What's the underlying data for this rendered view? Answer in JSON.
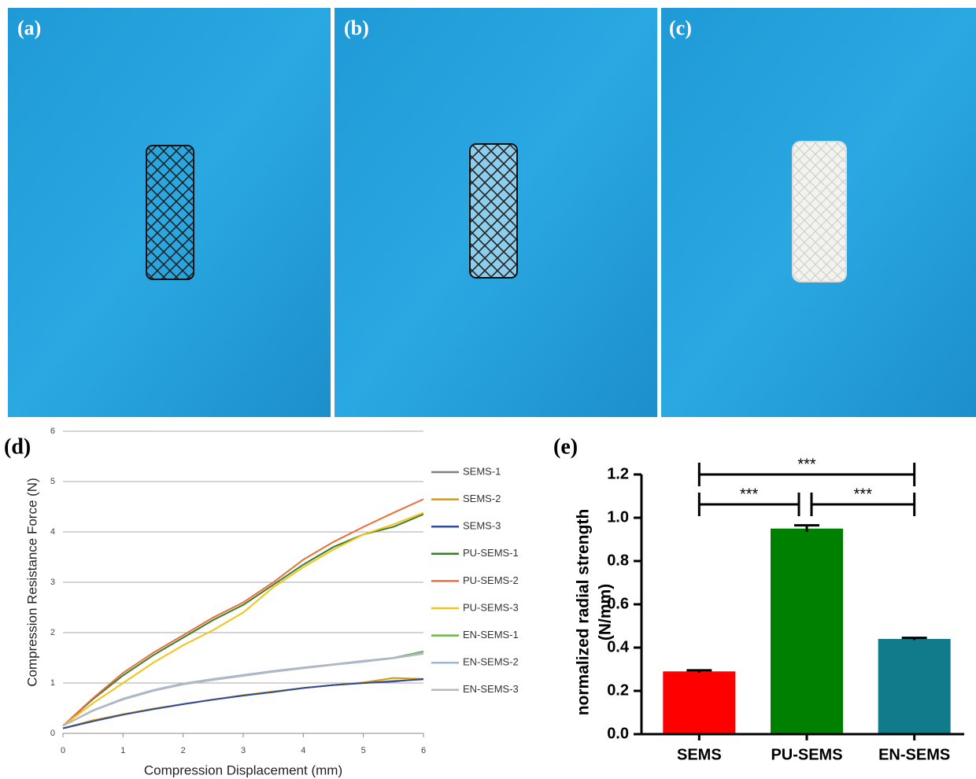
{
  "photo_labels": [
    "(a)",
    "(b)",
    "(c)"
  ],
  "chart_data": [
    {
      "type": "line",
      "label": "(d)",
      "xlabel": "Compression Displacement (mm)",
      "ylabel": "Compression Resistance Force (N)",
      "x": [
        0,
        0.5,
        1,
        1.5,
        2,
        2.5,
        3,
        3.5,
        4,
        4.5,
        5,
        5.5,
        6
      ],
      "xlim": [
        0,
        6
      ],
      "xticks": [
        0,
        1,
        2,
        3,
        4,
        5,
        6
      ],
      "ylim": [
        0,
        6
      ],
      "yticks": [
        0,
        1,
        2,
        3,
        4,
        5,
        6
      ],
      "grid": true,
      "legend": "right",
      "series": [
        {
          "name": "SEMS-1",
          "color": "#7f7f7f",
          "values": [
            0.1,
            0.25,
            0.38,
            0.48,
            0.58,
            0.67,
            0.75,
            0.83,
            0.9,
            0.96,
            1.0,
            1.04,
            1.07
          ]
        },
        {
          "name": "SEMS-2",
          "color": "#d99a00",
          "values": [
            0.1,
            0.26,
            0.38,
            0.49,
            0.58,
            0.67,
            0.76,
            0.83,
            0.9,
            0.96,
            1.01,
            1.1,
            1.08
          ]
        },
        {
          "name": "SEMS-3",
          "color": "#2e4b9c",
          "values": [
            0.1,
            0.24,
            0.37,
            0.48,
            0.58,
            0.67,
            0.75,
            0.82,
            0.9,
            0.96,
            1.0,
            1.03,
            1.08
          ]
        },
        {
          "name": "PU-SEMS-1",
          "color": "#3a7d2a",
          "values": [
            0.15,
            0.68,
            1.15,
            1.55,
            1.9,
            2.25,
            2.55,
            2.95,
            3.35,
            3.7,
            3.95,
            4.1,
            4.35
          ]
        },
        {
          "name": "PU-SEMS-2",
          "color": "#e8703a",
          "values": [
            0.15,
            0.7,
            1.2,
            1.6,
            1.95,
            2.3,
            2.6,
            3.0,
            3.45,
            3.8,
            4.1,
            4.38,
            4.65
          ]
        },
        {
          "name": "PU-SEMS-3",
          "color": "#f5c11a",
          "values": [
            0.15,
            0.6,
            1.0,
            1.4,
            1.75,
            2.05,
            2.4,
            2.9,
            3.3,
            3.65,
            3.95,
            4.15,
            4.38
          ]
        },
        {
          "name": "EN-SEMS-1",
          "color": "#70b34a",
          "values": [
            0.15,
            0.45,
            0.68,
            0.85,
            0.98,
            1.07,
            1.15,
            1.23,
            1.3,
            1.37,
            1.43,
            1.5,
            1.63
          ]
        },
        {
          "name": "EN-SEMS-2",
          "color": "#9ab7de",
          "values": [
            0.15,
            0.46,
            0.69,
            0.86,
            0.99,
            1.08,
            1.16,
            1.24,
            1.31,
            1.37,
            1.44,
            1.5,
            1.6
          ]
        },
        {
          "name": "EN-SEMS-3",
          "color": "#b8b8b8",
          "values": [
            0.15,
            0.45,
            0.67,
            0.84,
            0.97,
            1.06,
            1.14,
            1.22,
            1.29,
            1.36,
            1.42,
            1.49,
            1.58
          ]
        }
      ]
    },
    {
      "type": "bar",
      "label": "(e)",
      "ylabel": [
        "normalized radial strength",
        "(N/mm)"
      ],
      "categories": [
        "SEMS",
        "PU-SEMS",
        "EN-SEMS"
      ],
      "values": [
        0.29,
        0.95,
        0.44
      ],
      "errors": [
        0.005,
        0.015,
        0.005
      ],
      "colors": [
        "#ff0000",
        "#008000",
        "#117a8b"
      ],
      "ylim": [
        0,
        1.2
      ],
      "yticks": [
        {
          "value": 0,
          "label": "0.0"
        },
        0.2,
        0.4,
        0.6,
        0.8,
        {
          "value": 1,
          "label": "1.0"
        },
        1.2
      ],
      "significance": [
        {
          "from": 0,
          "to": 2,
          "label": "***"
        },
        {
          "from": 0,
          "to": 1,
          "label": "***"
        },
        {
          "from": 1,
          "to": 2,
          "label": "***"
        }
      ]
    }
  ]
}
